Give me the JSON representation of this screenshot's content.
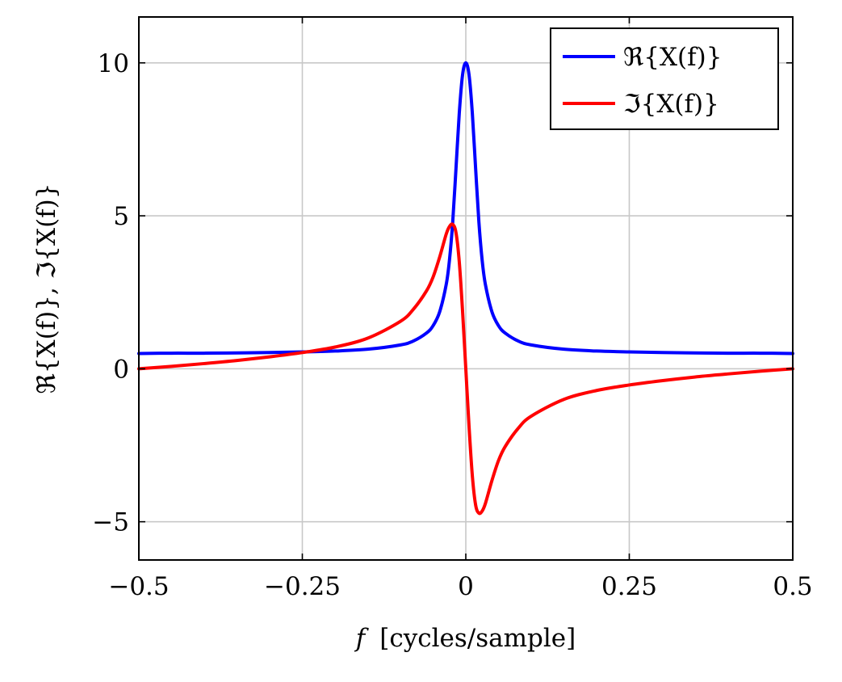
{
  "chart_data": {
    "type": "line",
    "title": "",
    "xlabel": "f  [cycles/sample]",
    "xlabel_var": "f",
    "xlabel_unit": "[cycles/sample]",
    "ylabel": "ℜ{X(f)}, ℑ{X(f)}",
    "xlim": [
      -0.5,
      0.5
    ],
    "ylim": [
      -6.25,
      11.5
    ],
    "x_ticks": [
      -0.5,
      -0.25,
      0,
      0.25,
      0.5
    ],
    "x_tick_labels": [
      "−0.5",
      "−0.25",
      "0",
      "0.25",
      "0.5"
    ],
    "y_ticks": [
      -5,
      0,
      5,
      10
    ],
    "y_tick_labels": [
      "−5",
      "0",
      "5",
      "10"
    ],
    "grid": true,
    "legend_position": "top-right",
    "series": [
      {
        "name": "ℜ{X(f)}",
        "color": "#0000ff",
        "x": [
          -0.5,
          -0.45,
          -0.4,
          -0.35,
          -0.3,
          -0.25,
          -0.2,
          -0.15,
          -0.1,
          -0.08,
          -0.06,
          -0.05,
          -0.04,
          -0.03,
          -0.025,
          -0.02,
          -0.015,
          -0.01,
          -0.005,
          0,
          0.005,
          0.01,
          0.015,
          0.02,
          0.025,
          0.03,
          0.04,
          0.05,
          0.06,
          0.08,
          0.1,
          0.15,
          0.2,
          0.25,
          0.3,
          0.35,
          0.4,
          0.45,
          0.5
        ],
        "values": [
          0.5,
          0.51,
          0.51,
          0.52,
          0.53,
          0.55,
          0.58,
          0.64,
          0.78,
          0.91,
          1.17,
          1.41,
          1.86,
          2.75,
          3.55,
          4.8,
          6.55,
          8.35,
          9.6,
          10.0,
          9.6,
          8.35,
          6.55,
          4.8,
          3.55,
          2.75,
          1.86,
          1.41,
          1.17,
          0.91,
          0.78,
          0.64,
          0.58,
          0.55,
          0.53,
          0.52,
          0.51,
          0.51,
          0.5
        ]
      },
      {
        "name": "ℑ{X(f)}",
        "color": "#ff0000",
        "x": [
          -0.5,
          -0.45,
          -0.4,
          -0.35,
          -0.3,
          -0.25,
          -0.2,
          -0.15,
          -0.1,
          -0.08,
          -0.06,
          -0.05,
          -0.04,
          -0.03,
          -0.025,
          -0.02,
          -0.015,
          -0.01,
          -0.005,
          0,
          0.005,
          0.01,
          0.015,
          0.02,
          0.025,
          0.03,
          0.04,
          0.05,
          0.06,
          0.08,
          0.1,
          0.15,
          0.2,
          0.25,
          0.3,
          0.35,
          0.4,
          0.45,
          0.5
        ],
        "values": [
          0.0,
          0.08,
          0.17,
          0.27,
          0.39,
          0.53,
          0.71,
          1.0,
          1.55,
          1.95,
          2.55,
          3.0,
          3.65,
          4.4,
          4.65,
          4.72,
          4.45,
          3.5,
          1.9,
          0.0,
          -1.9,
          -3.5,
          -4.45,
          -4.72,
          -4.65,
          -4.4,
          -3.65,
          -3.0,
          -2.55,
          -1.95,
          -1.55,
          -1.0,
          -0.71,
          -0.53,
          -0.39,
          -0.27,
          -0.17,
          -0.08,
          0.0
        ]
      }
    ]
  }
}
